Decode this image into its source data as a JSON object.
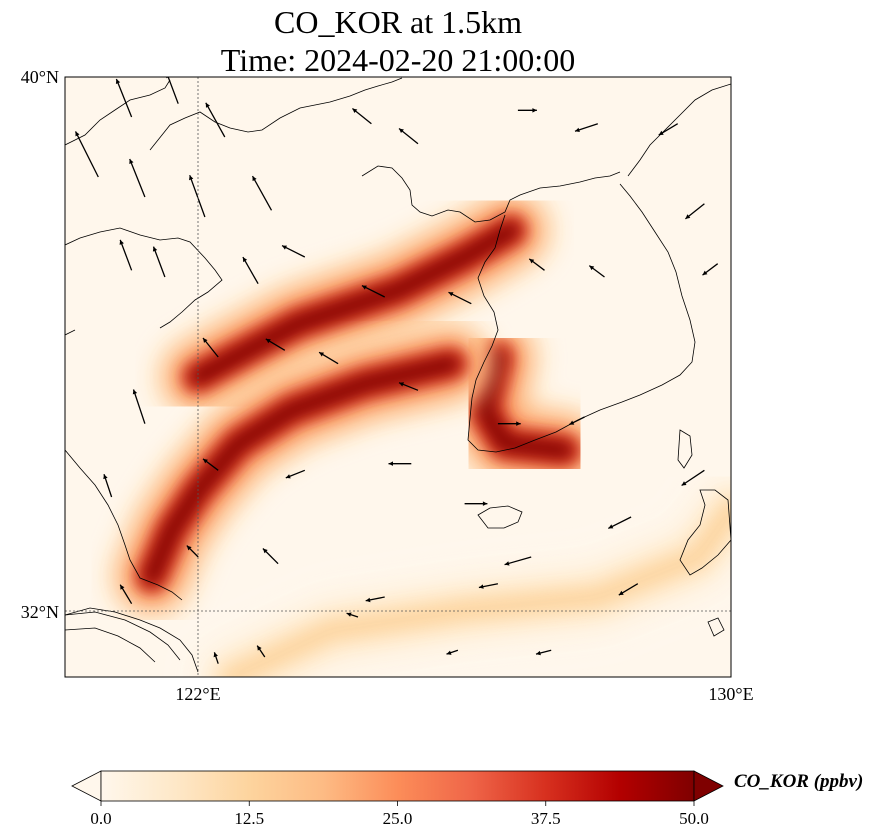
{
  "title": {
    "line1": "CO_KOR at 1.5km",
    "line2": "Time: 2024-02-20 21:00:00"
  },
  "chart_data": {
    "type": "heatmap",
    "variable": "CO_KOR",
    "level": "1.5km",
    "time": "2024-02-20 21:00:00",
    "xaxis": {
      "ticks": [
        122,
        130
      ],
      "tick_labels": [
        "122°E",
        "130°E"
      ],
      "range": [
        120,
        130
      ]
    },
    "yaxis": {
      "ticks": [
        32,
        40
      ],
      "tick_labels": [
        "32°N",
        "40°N"
      ],
      "range": [
        31,
        40
      ]
    },
    "gridlines": {
      "lon": [
        122
      ],
      "lat": [
        32
      ],
      "style": "dotted"
    },
    "colorbar": {
      "label": "CO_KOR (ppbv)",
      "min": 0.0,
      "max": 50.0,
      "ticks": [
        "0.0",
        "12.5",
        "25.0",
        "37.5",
        "50.0"
      ],
      "colormap": "OrRd",
      "extend": "both",
      "colors": [
        "#fff7ec",
        "#fee8c8",
        "#fdd49e",
        "#fdbb84",
        "#fc8d59",
        "#ef6548",
        "#d7301f",
        "#b30000",
        "#7f0000"
      ]
    },
    "plumes": [
      {
        "name": "north-plume",
        "path": [
          [
            122.0,
            35.5
          ],
          [
            123.5,
            36.3
          ],
          [
            125.0,
            36.8
          ],
          [
            126.0,
            37.3
          ],
          [
            126.7,
            37.7
          ]
        ],
        "peak": 50
      },
      {
        "name": "korea-west",
        "path": [
          [
            126.5,
            35.8
          ],
          [
            126.3,
            35.0
          ],
          [
            126.6,
            34.5
          ],
          [
            127.5,
            34.4
          ]
        ],
        "peak": 48
      },
      {
        "name": "southwest-plume",
        "path": [
          [
            121.3,
            32.5
          ],
          [
            121.6,
            33.2
          ],
          [
            122.0,
            33.8
          ],
          [
            122.6,
            34.5
          ],
          [
            123.4,
            35.0
          ],
          [
            124.5,
            35.4
          ],
          [
            125.8,
            35.7
          ]
        ],
        "peak": 50
      },
      {
        "name": "south-plume",
        "path": [
          [
            122.5,
            31.0
          ],
          [
            124.0,
            31.7
          ],
          [
            126.0,
            32.0
          ],
          [
            128.0,
            32.2
          ],
          [
            129.5,
            32.8
          ],
          [
            130.0,
            33.5
          ]
        ],
        "peak": 12
      }
    ],
    "wind_vectors": [
      [
        120.5,
        38.5,
        0.6,
        -1.2
      ],
      [
        121.2,
        38.2,
        0.4,
        -1.0
      ],
      [
        122.1,
        37.9,
        0.4,
        -1.1
      ],
      [
        123.1,
        38.0,
        0.5,
        -0.9
      ],
      [
        121.0,
        39.4,
        0.4,
        -1.0
      ],
      [
        121.7,
        39.6,
        0.3,
        -0.8
      ],
      [
        122.4,
        39.1,
        0.5,
        -0.9
      ],
      [
        124.6,
        39.3,
        0.5,
        -0.4
      ],
      [
        125.3,
        39.0,
        0.5,
        -0.4
      ],
      [
        126.8,
        39.5,
        -0.5,
        0.0
      ],
      [
        128.0,
        39.3,
        0.6,
        0.2
      ],
      [
        129.2,
        39.3,
        0.5,
        0.3
      ],
      [
        121.0,
        37.1,
        0.3,
        -0.8
      ],
      [
        121.5,
        37.0,
        0.3,
        -0.8
      ],
      [
        122.9,
        36.9,
        0.4,
        -0.7
      ],
      [
        123.6,
        37.3,
        0.6,
        -0.3
      ],
      [
        124.8,
        36.7,
        0.6,
        -0.3
      ],
      [
        126.1,
        36.6,
        0.6,
        -0.3
      ],
      [
        127.2,
        37.1,
        0.4,
        -0.3
      ],
      [
        128.1,
        37.0,
        0.4,
        -0.3
      ],
      [
        129.6,
        38.1,
        0.5,
        0.4
      ],
      [
        129.8,
        37.2,
        0.4,
        0.3
      ],
      [
        122.3,
        35.8,
        0.4,
        -0.5
      ],
      [
        123.3,
        35.9,
        0.5,
        -0.3
      ],
      [
        124.1,
        35.7,
        0.5,
        -0.3
      ],
      [
        125.3,
        35.3,
        0.5,
        -0.2
      ],
      [
        126.5,
        34.8,
        -0.6,
        0.0
      ],
      [
        127.8,
        34.9,
        0.4,
        0.2
      ],
      [
        121.2,
        34.8,
        0.3,
        -0.9
      ],
      [
        122.3,
        34.1,
        0.4,
        -0.3
      ],
      [
        123.6,
        34.1,
        0.5,
        0.2
      ],
      [
        125.2,
        34.2,
        0.6,
        0.0
      ],
      [
        126.0,
        33.6,
        -0.6,
        0.0
      ],
      [
        127.0,
        32.8,
        0.7,
        0.2
      ],
      [
        128.5,
        33.4,
        0.6,
        0.3
      ],
      [
        129.6,
        34.1,
        0.6,
        0.4
      ],
      [
        120.7,
        33.7,
        0.2,
        -0.6
      ],
      [
        122.0,
        32.8,
        0.3,
        -0.3
      ],
      [
        123.2,
        32.7,
        0.4,
        -0.4
      ],
      [
        124.8,
        32.2,
        0.5,
        0.1
      ],
      [
        126.5,
        32.4,
        0.5,
        0.1
      ],
      [
        128.6,
        32.4,
        0.5,
        0.3
      ],
      [
        121.0,
        32.1,
        0.3,
        -0.5
      ],
      [
        122.3,
        31.2,
        0.1,
        -0.3
      ],
      [
        123.0,
        31.3,
        0.2,
        -0.3
      ],
      [
        124.4,
        31.9,
        0.3,
        -0.1
      ],
      [
        125.9,
        31.4,
        0.3,
        0.1
      ],
      [
        127.3,
        31.4,
        0.4,
        0.1
      ],
      [
        129.0,
        31.0,
        0.3,
        0.5
      ]
    ]
  }
}
